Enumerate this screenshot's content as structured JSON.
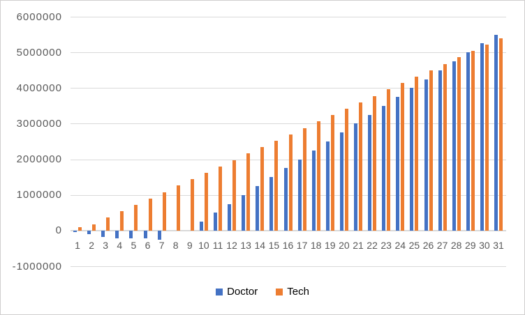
{
  "chart_data": {
    "type": "bar",
    "title": "",
    "xlabel": "",
    "ylabel": "",
    "categories": [
      "1",
      "2",
      "3",
      "4",
      "5",
      "6",
      "7",
      "8",
      "9",
      "10",
      "11",
      "12",
      "13",
      "14",
      "15",
      "16",
      "17",
      "18",
      "19",
      "20",
      "21",
      "22",
      "23",
      "24",
      "25",
      "26",
      "27",
      "28",
      "29",
      "30",
      "31"
    ],
    "series": [
      {
        "name": "Doctor",
        "color": "#4472C4",
        "values": [
          -40000,
          -105000,
          -170000,
          -215000,
          -215000,
          -215000,
          -250000,
          0,
          0,
          250000,
          500000,
          750000,
          1000000,
          1250000,
          1500000,
          1750000,
          2000000,
          2250000,
          2500000,
          2750000,
          3000000,
          3250000,
          3500000,
          3750000,
          4000000,
          4250000,
          4500000,
          4750000,
          5000000,
          5250000,
          5500000
        ]
      },
      {
        "name": "Tech",
        "color": "#ED7D31",
        "values": [
          90000,
          180000,
          360000,
          540000,
          720000,
          900000,
          1080000,
          1260000,
          1440000,
          1620000,
          1800000,
          1980000,
          2160000,
          2340000,
          2520000,
          2700000,
          2880000,
          3060000,
          3240000,
          3420000,
          3600000,
          3780000,
          3960000,
          4140000,
          4320000,
          4500000,
          4680000,
          4860000,
          5040000,
          5220000,
          5400000
        ]
      }
    ],
    "ylim": [
      -1000000,
      6000000
    ],
    "ytick_interval": 1000000,
    "ytick_labels": [
      "6000000",
      "5000000",
      "4000000",
      "3000000",
      "2000000",
      "1000000",
      "0",
      "-1000000"
    ],
    "grid": "horizontal",
    "legend_position": "bottom",
    "colors": {
      "gridline": "#D9D9D9",
      "axis_line": "#D9D9D9",
      "tick_text": "#595959",
      "background": "#FFFFFF",
      "border": "#D0CECE"
    }
  }
}
